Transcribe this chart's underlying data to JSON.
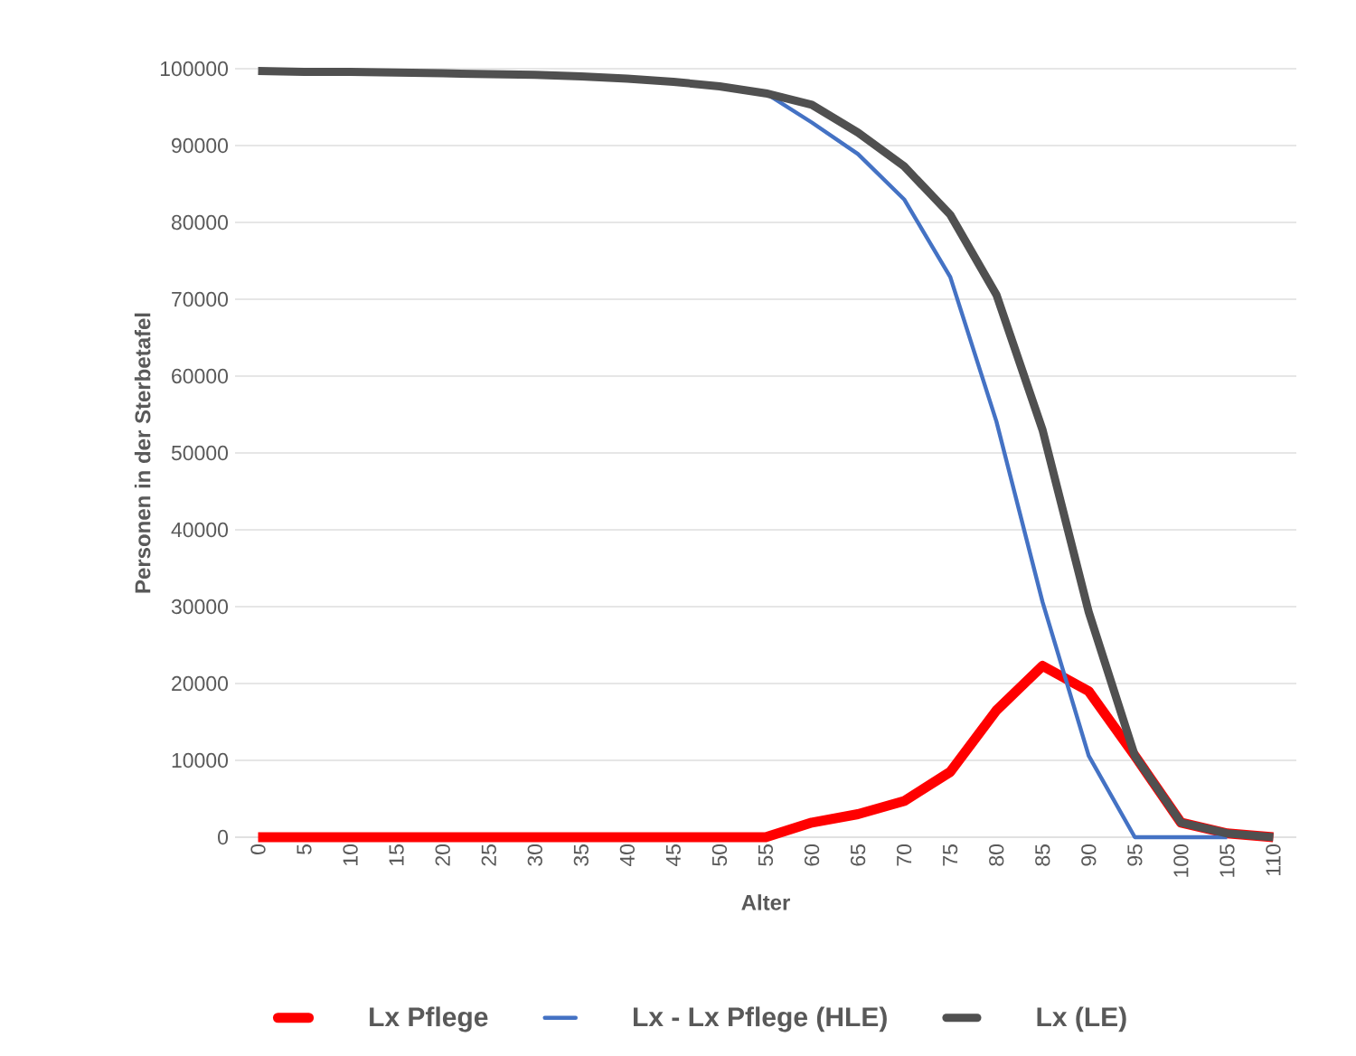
{
  "chart_data": {
    "type": "line",
    "xlabel": "Alter",
    "ylabel": "Personen in der Sterbetafel",
    "categories": [
      "0",
      "5",
      "10",
      "15",
      "20",
      "25",
      "30",
      "35",
      "40",
      "45",
      "50",
      "55",
      "60",
      "65",
      "70",
      "75",
      "80",
      "85",
      "90",
      "95",
      "100",
      "105",
      "110"
    ],
    "ylim": [
      0,
      100000
    ],
    "yticks": [
      0,
      10000,
      20000,
      30000,
      40000,
      50000,
      60000,
      70000,
      80000,
      90000,
      100000
    ],
    "grid": "y",
    "legend": "bottom",
    "marker": "none",
    "line_style": "solid",
    "series": [
      {
        "name": "Lx Pflege",
        "color": "#ff0000",
        "values": [
          0,
          0,
          0,
          0,
          0,
          0,
          0,
          0,
          0,
          0,
          0,
          0,
          1900,
          3000,
          4700,
          8500,
          16500,
          22300,
          19000,
          10600,
          1900,
          500,
          0
        ]
      },
      {
        "name": "Lx - Lx Pflege (HLE)",
        "color": "#4472c4",
        "values": [
          null,
          null,
          null,
          null,
          null,
          null,
          null,
          null,
          null,
          null,
          null,
          96800,
          93000,
          88900,
          83000,
          72900,
          54100,
          30600,
          10600,
          0,
          0,
          0,
          null
        ]
      },
      {
        "name": "Lx (LE)",
        "color": "#505050",
        "values": [
          99700,
          99600,
          99600,
          99500,
          99400,
          99300,
          99200,
          99000,
          98700,
          98300,
          97700,
          96800,
          95300,
          91700,
          87300,
          81000,
          70600,
          53000,
          29300,
          10600,
          1900,
          500,
          0
        ]
      }
    ]
  }
}
